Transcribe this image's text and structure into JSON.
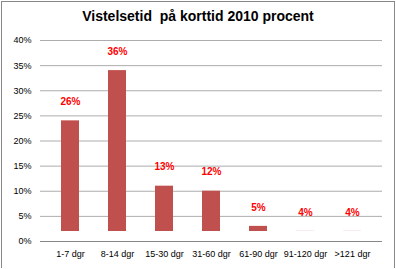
{
  "chart_data": {
    "type": "bar",
    "title": "Vistelsetid  på korttid 2010 procent",
    "categories": [
      "1-7 dgr",
      "8-14 dgr",
      "15-30 dgr",
      "31-60 dgr",
      "61-90 dgr",
      "91-120 dgr",
      ">121 dgr"
    ],
    "values": [
      26,
      36,
      13,
      12,
      5,
      4,
      4
    ],
    "value_labels": [
      "26%",
      "36%",
      "13%",
      "12%",
      "5%",
      "4%",
      "4%"
    ],
    "color": "#c0504d",
    "ylim": [
      0,
      40
    ],
    "yticks": [
      {
        "value": 0,
        "label": "0%"
      },
      {
        "value": 5,
        "label": "5%"
      },
      {
        "value": 10,
        "label": "10%"
      },
      {
        "value": 15,
        "label": "15%"
      },
      {
        "value": 20,
        "label": "20%"
      },
      {
        "value": 25,
        "label": "25%"
      },
      {
        "value": 30,
        "label": "30%"
      },
      {
        "value": 35,
        "label": "35%"
      },
      {
        "value": 40,
        "label": "40%"
      }
    ],
    "grid": true,
    "data_labels": true
  }
}
